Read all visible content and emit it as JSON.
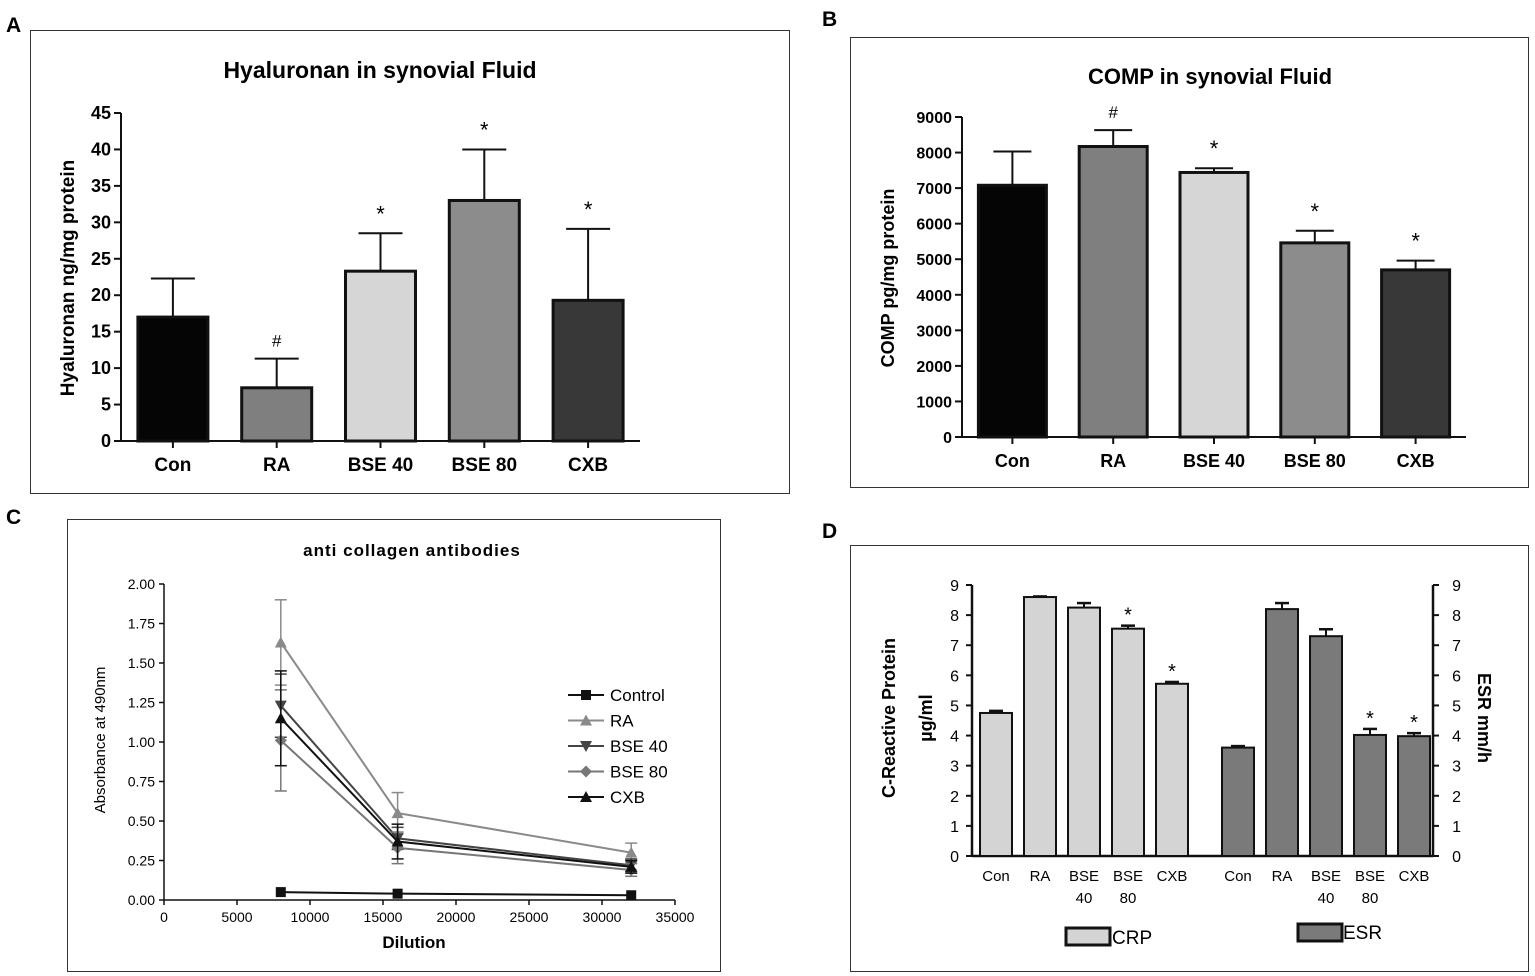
{
  "panels": {
    "A": {
      "letter": "A"
    },
    "B": {
      "letter": "B"
    },
    "C": {
      "letter": "C"
    },
    "D": {
      "letter": "D"
    }
  },
  "colors": {
    "con": "#050505",
    "ra": "#7f7f7f",
    "bse40": "#d6d6d6",
    "bse80": "#8c8c8c",
    "cxb": "#383838",
    "crp": "#d4d4d4",
    "esr": "#7a7a7a"
  },
  "chart_data": [
    {
      "id": "A",
      "type": "bar",
      "title": "Hyaluronan in synovial Fluid",
      "xlabel": "",
      "ylabel": "Hyaluronan ng/mg protein",
      "ylim": [
        0,
        45
      ],
      "yticks": [
        0,
        5,
        10,
        15,
        20,
        25,
        30,
        35,
        40,
        45
      ],
      "categories": [
        "Con",
        "RA",
        "BSE 40",
        "BSE 80",
        "CXB"
      ],
      "values": [
        17,
        7.3,
        23.3,
        33,
        19.3
      ],
      "errors": [
        5.3,
        4,
        5.2,
        7,
        9.8
      ],
      "annotations": [
        "",
        "#",
        "*",
        "*",
        "*"
      ]
    },
    {
      "id": "B",
      "type": "bar",
      "title": "COMP in synovial Fluid",
      "xlabel": "",
      "ylabel": "COMP pg/mg protein",
      "ylim": [
        0,
        9000
      ],
      "yticks": [
        0,
        1000,
        2000,
        3000,
        4000,
        5000,
        6000,
        7000,
        8000,
        9000
      ],
      "categories": [
        "Con",
        "RA",
        "BSE 40",
        "BSE 80",
        "CXB"
      ],
      "values": [
        7080,
        8170,
        7440,
        5460,
        4700
      ],
      "errors": [
        950,
        460,
        120,
        340,
        260
      ],
      "annotations": [
        "",
        "#",
        "*",
        "*",
        "*"
      ]
    },
    {
      "id": "C",
      "type": "line",
      "title": "anti collagen antibodies",
      "xlabel": "Dilution",
      "ylabel": "Absorbance at 490nm",
      "xlim": [
        0,
        35000
      ],
      "ylim": [
        0,
        2
      ],
      "xticks": [
        0,
        5000,
        10000,
        15000,
        20000,
        25000,
        30000,
        35000
      ],
      "yticks": [
        "0.00",
        "0.25",
        "0.50",
        "0.75",
        "1.00",
        "1.25",
        "1.50",
        "1.75",
        "2.00"
      ],
      "x": [
        8000,
        16000,
        32000
      ],
      "series": [
        {
          "name": "Control",
          "values": [
            0.05,
            0.04,
            0.03
          ],
          "errors": [
            0,
            0,
            0
          ],
          "marker": "square",
          "color": "#111111"
        },
        {
          "name": "RA",
          "values": [
            1.63,
            0.55,
            0.3
          ],
          "errors": [
            0.27,
            0.13,
            0.06
          ],
          "marker": "triangle-up",
          "color": "#8a8a8a"
        },
        {
          "name": "BSE 40",
          "values": [
            1.23,
            0.39,
            0.22
          ],
          "errors": [
            0.2,
            0.07,
            0.04
          ],
          "marker": "triangle-down",
          "color": "#444444"
        },
        {
          "name": "BSE 80",
          "values": [
            1.01,
            0.33,
            0.19
          ],
          "errors": [
            0.32,
            0.1,
            0.04
          ],
          "marker": "diamond",
          "color": "#777777"
        },
        {
          "name": "CXB",
          "values": [
            1.15,
            0.37,
            0.21
          ],
          "errors": [
            0.3,
            0.11,
            0.04
          ],
          "marker": "triangle-up",
          "color": "#111111"
        }
      ]
    },
    {
      "id": "D",
      "type": "bar",
      "title": "",
      "ylabel": "C-Reactive Protein µg/ml",
      "ylabel_line1": "C-Reactive Protein",
      "ylabel_line2": "µg/ml",
      "ylabel_right": "ESR mm/h",
      "ylim": [
        0,
        9
      ],
      "yticks": [
        0,
        1,
        2,
        3,
        4,
        5,
        6,
        7,
        8,
        9
      ],
      "groups": [
        {
          "name": "CRP",
          "categories": [
            [
              "Con"
            ],
            [
              "RA"
            ],
            [
              "BSE",
              "40"
            ],
            [
              "BSE",
              "80"
            ],
            [
              "CXB"
            ]
          ],
          "values": [
            4.75,
            8.6,
            8.25,
            7.55,
            5.72
          ],
          "errors": [
            0.07,
            0.02,
            0.15,
            0.1,
            0.06
          ],
          "annotations": [
            "",
            "",
            "",
            "*",
            "*"
          ]
        },
        {
          "name": "ESR",
          "categories": [
            [
              "Con"
            ],
            [
              "RA"
            ],
            [
              "BSE",
              "40"
            ],
            [
              "BSE",
              "80"
            ],
            [
              "CXB"
            ]
          ],
          "values": [
            3.6,
            8.2,
            7.3,
            4.02,
            3.98
          ],
          "errors": [
            0.05,
            0.2,
            0.23,
            0.2,
            0.1
          ],
          "annotations": [
            "",
            "",
            "",
            "*",
            "*"
          ]
        }
      ],
      "legend": [
        "CRP",
        "ESR"
      ]
    }
  ]
}
